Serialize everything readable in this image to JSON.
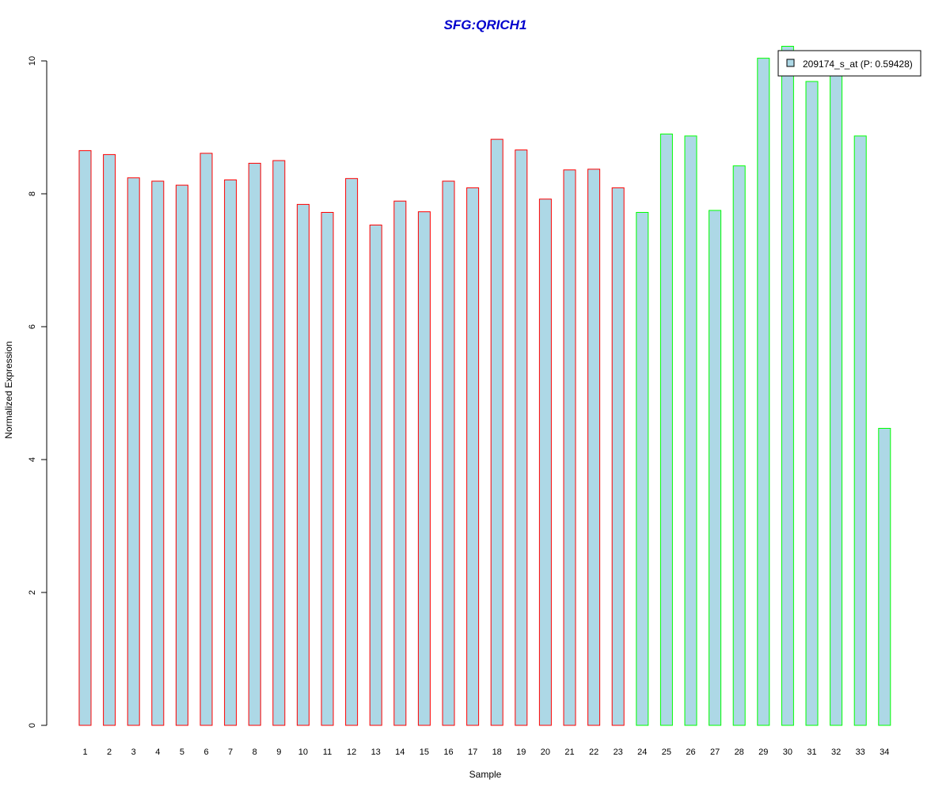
{
  "chart_data": {
    "type": "bar",
    "title": "SFG:QRICH1",
    "xlabel": "Sample",
    "ylabel": "Normalized Expression",
    "categories": [
      "1",
      "2",
      "3",
      "4",
      "5",
      "6",
      "7",
      "8",
      "9",
      "10",
      "11",
      "12",
      "13",
      "14",
      "15",
      "16",
      "17",
      "18",
      "19",
      "20",
      "21",
      "22",
      "23",
      "24",
      "25",
      "26",
      "27",
      "28",
      "29",
      "30",
      "31",
      "32",
      "33",
      "34"
    ],
    "series": [
      {
        "name": "209174_s_at (P: 0.59428)",
        "values": [
          8.65,
          8.59,
          8.24,
          8.19,
          8.13,
          8.61,
          8.21,
          8.46,
          8.5,
          7.84,
          7.72,
          8.23,
          7.53,
          7.89,
          7.73,
          8.19,
          8.09,
          8.82,
          8.66,
          7.92,
          8.36,
          8.37,
          8.09,
          7.72,
          8.9,
          8.87,
          7.75,
          8.42,
          10.04,
          10.22,
          9.69,
          9.84,
          8.87,
          4.47
        ]
      }
    ],
    "group_split_after": 23,
    "ylim": [
      0,
      10
    ],
    "yticks": [
      "0",
      "2",
      "4",
      "6",
      "8",
      "10"
    ],
    "legend_position": "top-right",
    "grid": false,
    "colors": {
      "title": "#0000CD",
      "bar_fill": "#ADD8E6",
      "group1_outline": "#FF0000",
      "group2_outline": "#00FF00",
      "axis": "#000000"
    }
  }
}
